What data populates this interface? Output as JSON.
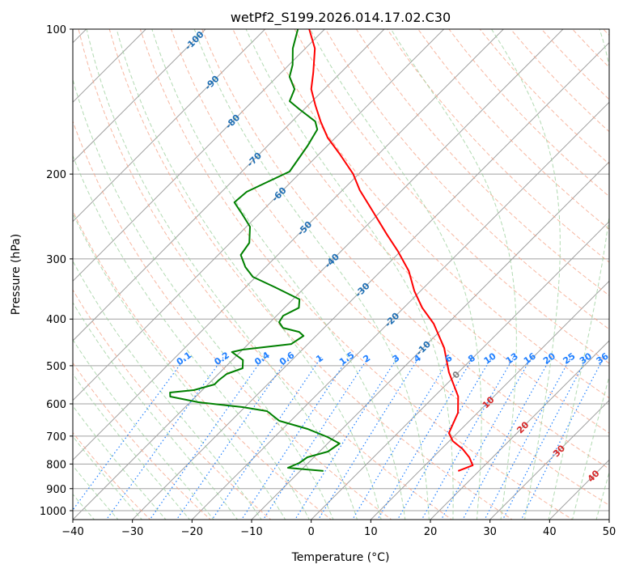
{
  "chart_data": {
    "type": "line",
    "subtype": "skew-t",
    "title": "wetPf2_S199.2026.014.17.02.C30",
    "xlabel": "Temperature (°C)",
    "ylabel": "Pressure (hPa)",
    "xlim": [
      -40,
      50
    ],
    "ylim": [
      1050,
      100
    ],
    "xticks": [
      "−40",
      "−30",
      "−20",
      "−10",
      "0",
      "10",
      "20",
      "30",
      "40",
      "50"
    ],
    "xtick_values": [
      -40,
      -30,
      -20,
      -10,
      0,
      10,
      20,
      30,
      40,
      50
    ],
    "yticks": [
      "100",
      "200",
      "300",
      "400",
      "500",
      "600",
      "700",
      "800",
      "900",
      "1000"
    ],
    "ytick_values": [
      100,
      200,
      300,
      400,
      500,
      600,
      700,
      800,
      900,
      1000
    ],
    "grid": true,
    "series": [
      {
        "name": "temperature",
        "color": "#ff0000",
        "pressure": [
          100,
          109.7,
          123.2,
          133.2,
          143.9,
          155.5,
          168,
          181.5,
          200,
          216,
          238,
          267,
          289,
          318,
          350,
          379,
          409,
          459,
          516,
          579,
          626,
          690,
          717,
          745,
          775,
          805,
          827
        ],
        "temperature": [
          -82.6,
          -78.4,
          -74.6,
          -72.2,
          -68.8,
          -65.2,
          -61.3,
          -56.6,
          -50.9,
          -47.1,
          -41.6,
          -35.1,
          -30.5,
          -25.3,
          -21,
          -16.9,
          -12.3,
          -6.5,
          -1.6,
          4.0,
          6.7,
          8.6,
          10.6,
          13.6,
          16.1,
          18,
          16.5
        ]
      },
      {
        "name": "dewpoint",
        "color": "#008000",
        "pressure": [
          100,
          109.7,
          118.6,
          125.6,
          133.2,
          141.1,
          146.7,
          155.5,
          161.6,
          174.6,
          185,
          197.6,
          207.8,
          217.7,
          228.9,
          242.7,
          257.2,
          277.8,
          294.4,
          312,
          326.9,
          343.7,
          364.1,
          379,
          393.6,
          406,
          417.2,
          425.4,
          433.5,
          450.7,
          463,
          468.4,
          486.7,
          506,
          520,
          536.3,
          546.8,
          561.8,
          568.3,
          579.4,
          595.4,
          609.4,
          621.3,
          650.8,
          676.6,
          703.1,
          725.3,
          753.9,
          774.6,
          795.8,
          814.5,
          827
        ],
        "temperature": [
          -84.5,
          -82.1,
          -79.4,
          -77.9,
          -75,
          -73.8,
          -70.8,
          -66.1,
          -64.4,
          -63.3,
          -62.7,
          -62,
          -64,
          -65.8,
          -66.1,
          -62.7,
          -59.4,
          -56.8,
          -56.2,
          -53.4,
          -50.5,
          -45,
          -38.9,
          -37.6,
          -38.9,
          -38.5,
          -36.9,
          -33.5,
          -32.1,
          -32.8,
          -40,
          -41.4,
          -38.2,
          -36.9,
          -38.6,
          -38.9,
          -38.9,
          -41.4,
          -45,
          -44.3,
          -38.6,
          -30.4,
          -25.6,
          -21.9,
          -15.8,
          -11.1,
          -8,
          -8.6,
          -11.1,
          -11.5,
          -12.6,
          -6.1
        ]
      }
    ],
    "isotherm_labels": [
      "-100",
      "-90",
      "-80",
      "-70",
      "-60",
      "-50",
      "-40",
      "-30",
      "-20",
      "-10",
      "0",
      "10",
      "20",
      "30",
      "40"
    ],
    "isotherm_label_values": [
      -100,
      -90,
      -80,
      -70,
      -60,
      -50,
      -40,
      -30,
      -20,
      -10,
      0,
      10,
      20,
      30,
      40
    ],
    "mixing_ratio_labels": [
      "0.1",
      "0.2",
      "0.4",
      "0.6",
      "1",
      "1.5",
      "2",
      "3",
      "4",
      "6",
      "8",
      "10",
      "13",
      "16",
      "20",
      "25",
      "30",
      "36"
    ],
    "mixing_ratio_values": [
      0.1,
      0.2,
      0.4,
      0.6,
      1,
      1.5,
      2,
      3,
      4,
      6,
      8,
      10,
      13,
      16,
      20,
      25,
      30,
      36
    ],
    "colors": {
      "isotherm": "#a0a0a0",
      "dry_adiabat": "#f5a58a",
      "moist_adiabat": "#9fd19f",
      "mixing_ratio": "#1f7fff",
      "cold_label": "#1f6fb4",
      "warm_label": "#d62728",
      "zero_label": "#808080"
    }
  }
}
